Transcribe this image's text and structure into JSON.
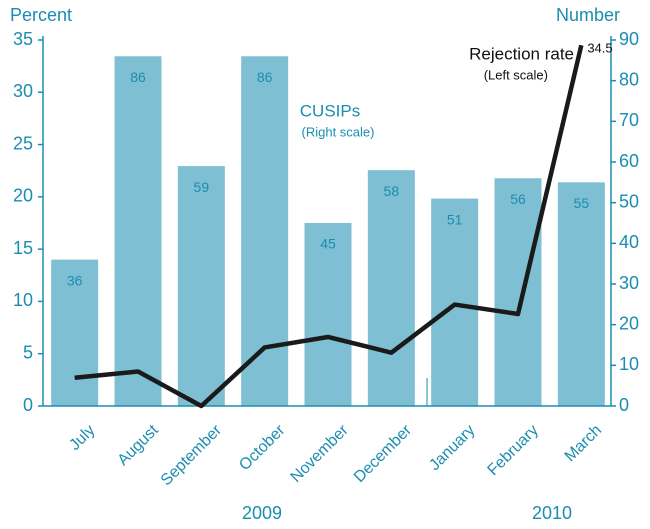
{
  "chart_data": {
    "type": "bar_line",
    "categories": [
      "July",
      "August",
      "September",
      "October",
      "November",
      "December",
      "January",
      "February",
      "March"
    ],
    "series": [
      {
        "name": "CUSIPs",
        "color": "#7fbfd3",
        "axis": "y2",
        "values": [
          36,
          86,
          59,
          86,
          45,
          58,
          51,
          56,
          55
        ]
      },
      {
        "name": "Rejection rate",
        "color": "#1a1a1a",
        "axis": "y",
        "values": [
          2.7,
          3.3,
          0,
          5.6,
          6.6,
          5.1,
          9.7,
          8.8,
          34.5
        ]
      }
    ],
    "annotations": {
      "cusips": "CUSIPs",
      "cusips_scale": "(Right scale)",
      "rejection": "Rejection rate",
      "rejection_scale": "(Left scale)",
      "year1": "2009",
      "year2": "2010"
    },
    "ylabel": "Percent",
    "y2label": "Number",
    "ylim": [
      0,
      35
    ],
    "yticks": [
      0,
      5,
      10,
      15,
      20,
      25,
      30,
      35
    ],
    "y2lim": [
      0,
      90
    ],
    "y2ticks": [
      0,
      10,
      20,
      30,
      40,
      50,
      60,
      70,
      80,
      90
    ]
  }
}
